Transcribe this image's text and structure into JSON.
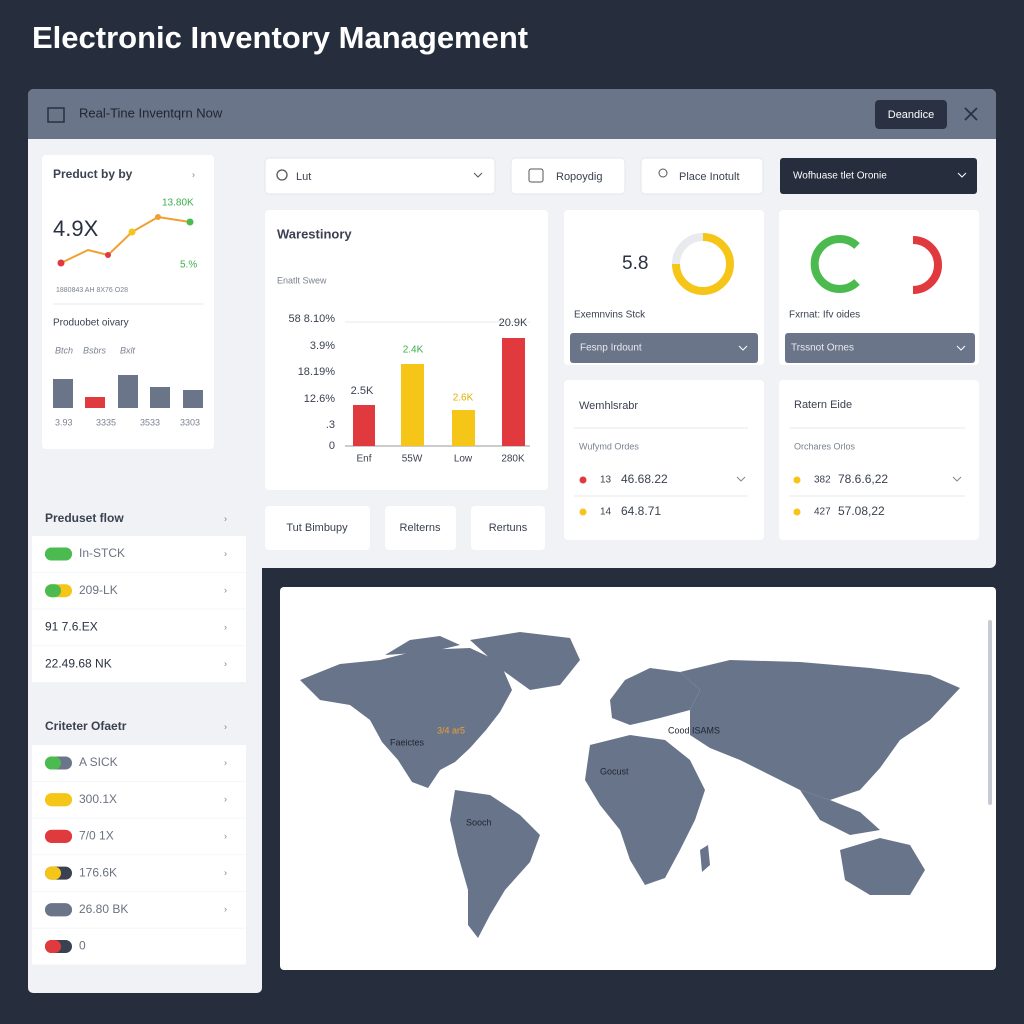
{
  "title": "Electronic Inventory Management",
  "header": {
    "title": "Real-Tine Inventqrn Now",
    "button": "Deandice"
  },
  "product_card": {
    "title": "Preduct by by",
    "big": "4.9X",
    "high": "13.80K",
    "low": "5.%",
    "caption": "1880843 AH 8X76 O28",
    "sub": "Produobet oivary",
    "bar_legend": [
      "Btch",
      "Bsbrs",
      "Bxlt"
    ],
    "bar_labels": [
      "3.93",
      "3335",
      "3533",
      "3303"
    ]
  },
  "controls": {
    "search": "Lut",
    "button_1": "Ropoydig",
    "button_2": "Place Inotult",
    "dropdown": "Wofhuase tlet Oronie"
  },
  "warehouse_card": {
    "title": "Warestinory",
    "subtitle": "Enatlt Swew",
    "axis_labels": [
      "58 8.10%",
      "3.9%",
      "18.19%",
      "12.6%",
      ".3",
      "0"
    ],
    "bar_labels": [
      "2.5K",
      "2.4K",
      "2.6K",
      "20.9K"
    ],
    "x_labels": [
      "Enf",
      "55W",
      "Low",
      "280K"
    ]
  },
  "stock_card": {
    "value": "5.8",
    "label": "Exemnvins Stck",
    "dropdown": "Fesnp Irdount"
  },
  "orders_card": {
    "label": "Fxrnat: Ifv oides",
    "dropdown": "Trssnot Ornes"
  },
  "buttons": [
    "Tut Bimbupy",
    "Relterns",
    "Rertuns"
  ],
  "warehouse_list": {
    "title": "Wemhlsrabr",
    "subtitle": "Wufymd Ordes",
    "rows": [
      [
        "13",
        "46.68.22"
      ],
      [
        "14",
        "64.8.71"
      ]
    ]
  },
  "return_list": {
    "title": "Ratern Eide",
    "subtitle": "Orchares Orlos",
    "rows": [
      [
        "382",
        "78.6.6,22"
      ],
      [
        "427",
        "57.08,22"
      ]
    ]
  },
  "product_flow": {
    "title": "Preduset flow",
    "rows": [
      "In-STCK",
      "209-LK",
      "91  7.6.EX",
      "22.49.68 NK"
    ]
  },
  "criteria": {
    "title": "Criteter Ofaetr",
    "rows": [
      "A SICK",
      "300.1X",
      "7/0 1X",
      "176.6K",
      "26.80 BK",
      "0"
    ]
  },
  "map": {
    "labels": [
      "Faeictes",
      "3/4 ar5",
      "Cood ISAMS",
      "Gocust",
      "Sooch"
    ]
  }
}
